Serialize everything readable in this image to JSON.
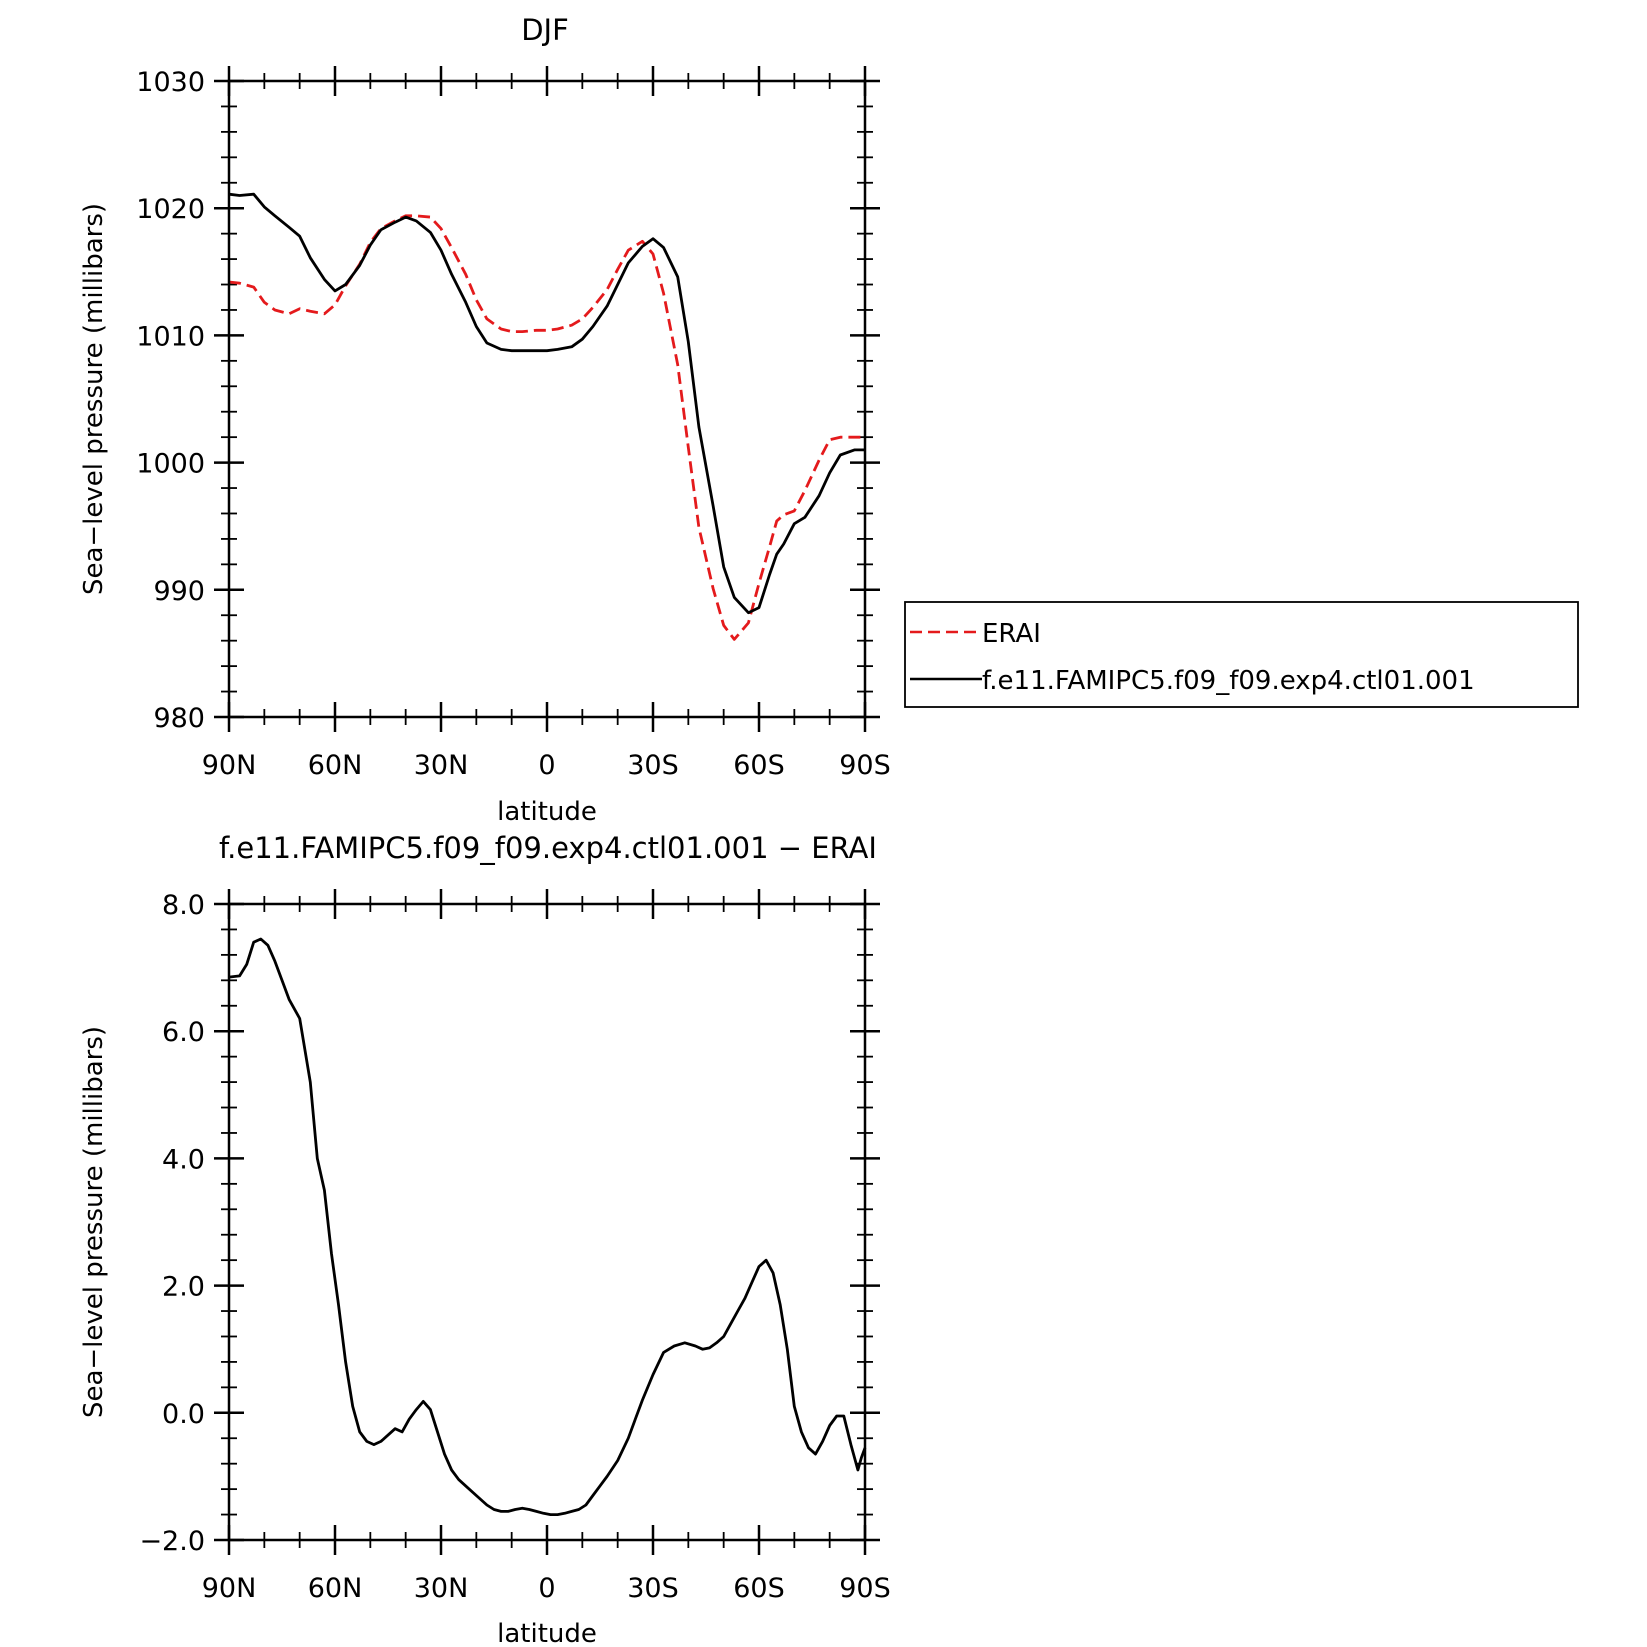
{
  "chart_data": [
    {
      "type": "line",
      "title": "DJF",
      "xlabel": "latitude",
      "ylabel": "Sea−level pressure (millibars)",
      "xlim": [
        90,
        -90
      ],
      "ylim": [
        980,
        1030
      ],
      "x_ticks": [
        90,
        60,
        30,
        0,
        -30,
        -60,
        -90
      ],
      "x_tick_labels": [
        "90N",
        "60N",
        "30N",
        "0",
        "30S",
        "60S",
        "90S"
      ],
      "y_ticks": [
        980,
        990,
        1000,
        1010,
        1020,
        1030
      ],
      "y_tick_labels": [
        "980",
        "990",
        "1000",
        "1010",
        "1020",
        "1030"
      ],
      "legend": "right",
      "series": [
        {
          "name": "ERAI",
          "color": "#e41a1c",
          "dash": "dashed",
          "x": [
            90,
            87,
            83,
            80,
            77,
            73,
            70,
            67,
            63,
            60,
            57,
            53,
            50,
            47,
            43,
            40,
            37,
            33,
            30,
            27,
            23,
            20,
            17,
            13,
            10,
            7,
            3,
            0,
            -3,
            -7,
            -10,
            -13,
            -17,
            -20,
            -23,
            -27,
            -30,
            -33,
            -37,
            -40,
            -43,
            -47,
            -50,
            -53,
            -57,
            -60,
            -63,
            -65,
            -67,
            -70,
            -73,
            -77,
            -80,
            -83,
            -87,
            -90
          ],
          "y": [
            1014.2,
            1014.1,
            1013.8,
            1012.6,
            1012.0,
            1011.7,
            1012.1,
            1011.9,
            1011.7,
            1012.4,
            1013.9,
            1015.6,
            1017.3,
            1018.4,
            1019.0,
            1019.4,
            1019.4,
            1019.3,
            1018.4,
            1016.9,
            1014.8,
            1012.8,
            1011.3,
            1010.5,
            1010.3,
            1010.3,
            1010.4,
            1010.4,
            1010.5,
            1010.8,
            1011.3,
            1012.2,
            1013.6,
            1015.2,
            1016.7,
            1017.4,
            1016.4,
            1013.3,
            1007.7,
            1001.2,
            994.9,
            990.1,
            987.2,
            986.1,
            987.4,
            990.5,
            993.4,
            995.4,
            995.9,
            996.2,
            997.8,
            1000.2,
            1001.8,
            1002.0,
            1002.0,
            1002.0
          ]
        },
        {
          "name": "f.e11.FAMIPC5.f09_f09.exp4.ctl01.001",
          "color": "#000000",
          "dash": "solid",
          "x": [
            90,
            87,
            83,
            80,
            77,
            73,
            70,
            67,
            63,
            60,
            57,
            53,
            50,
            47,
            43,
            40,
            37,
            33,
            30,
            27,
            23,
            20,
            17,
            13,
            10,
            7,
            3,
            0,
            -3,
            -7,
            -10,
            -13,
            -17,
            -20,
            -23,
            -27,
            -30,
            -33,
            -37,
            -40,
            -43,
            -47,
            -50,
            -53,
            -57,
            -60,
            -63,
            -65,
            -67,
            -70,
            -73,
            -77,
            -80,
            -83,
            -87,
            -90
          ],
          "y": [
            1021.1,
            1021.0,
            1021.1,
            1020.1,
            1019.4,
            1018.5,
            1017.8,
            1016.1,
            1014.4,
            1013.5,
            1014.0,
            1015.5,
            1017.1,
            1018.3,
            1018.9,
            1019.3,
            1019.0,
            1018.1,
            1016.7,
            1014.8,
            1012.6,
            1010.7,
            1009.4,
            1008.9,
            1008.8,
            1008.8,
            1008.8,
            1008.8,
            1008.9,
            1009.1,
            1009.7,
            1010.7,
            1012.3,
            1014.0,
            1015.7,
            1017.0,
            1017.6,
            1016.9,
            1014.6,
            1009.5,
            1002.8,
            996.6,
            991.8,
            989.4,
            988.2,
            988.6,
            991.2,
            992.8,
            993.6,
            995.2,
            995.7,
            997.4,
            999.2,
            1000.6,
            1001.0,
            1001.0
          ]
        }
      ]
    },
    {
      "type": "line",
      "title": "f.e11.FAMIPC5.f09_f09.exp4.ctl01.001  −  ERAI",
      "xlabel": "latitude",
      "ylabel": "Sea−level pressure (millibars)",
      "xlim": [
        90,
        -90
      ],
      "ylim": [
        -2.0,
        8.0
      ],
      "x_ticks": [
        90,
        60,
        30,
        0,
        -30,
        -60,
        -90
      ],
      "x_tick_labels": [
        "90N",
        "60N",
        "30N",
        "0",
        "30S",
        "60S",
        "90S"
      ],
      "y_ticks": [
        -2.0,
        0.0,
        2.0,
        4.0,
        6.0,
        8.0
      ],
      "y_tick_labels": [
        "−2.0",
        "0.0",
        "2.0",
        "4.0",
        "6.0",
        "8.0"
      ],
      "series": [
        {
          "color": "#000000",
          "dash": "solid",
          "x": [
            90,
            87,
            85,
            83,
            81,
            79,
            77,
            75,
            73,
            70,
            67,
            65,
            63,
            61,
            59,
            57,
            55,
            53,
            51,
            49,
            47,
            45,
            43,
            41,
            39,
            37,
            35,
            33,
            31,
            29,
            27,
            25,
            23,
            20,
            17,
            15,
            13,
            11,
            9,
            7,
            5,
            3,
            1,
            -1,
            -3,
            -5,
            -7,
            -9,
            -11,
            -13,
            -15,
            -17,
            -20,
            -23,
            -25,
            -27,
            -30,
            -33,
            -36,
            -39,
            -42,
            -44,
            -46,
            -48,
            -50,
            -52,
            -54,
            -56,
            -58,
            -60,
            -62,
            -64,
            -66,
            -68,
            -70,
            -72,
            -74,
            -76,
            -78,
            -80,
            -82,
            -84,
            -86,
            -88,
            -89,
            -90
          ],
          "y": [
            6.85,
            6.87,
            7.05,
            7.4,
            7.45,
            7.35,
            7.1,
            6.8,
            6.5,
            6.2,
            5.2,
            4.0,
            3.5,
            2.5,
            1.7,
            0.8,
            0.1,
            -0.3,
            -0.45,
            -0.5,
            -0.45,
            -0.35,
            -0.25,
            -0.3,
            -0.1,
            0.05,
            0.18,
            0.05,
            -0.3,
            -0.65,
            -0.9,
            -1.05,
            -1.15,
            -1.3,
            -1.45,
            -1.52,
            -1.55,
            -1.55,
            -1.52,
            -1.5,
            -1.52,
            -1.55,
            -1.58,
            -1.6,
            -1.6,
            -1.58,
            -1.55,
            -1.52,
            -1.45,
            -1.3,
            -1.15,
            -1.0,
            -0.75,
            -0.4,
            -0.1,
            0.2,
            0.6,
            0.95,
            1.05,
            1.1,
            1.05,
            1.0,
            1.02,
            1.1,
            1.2,
            1.4,
            1.6,
            1.8,
            2.05,
            2.3,
            2.4,
            2.2,
            1.7,
            1.0,
            0.1,
            -0.3,
            -0.55,
            -0.65,
            -0.45,
            -0.2,
            -0.05,
            -0.05,
            -0.5,
            -0.9,
            -0.7,
            -0.55
          ]
        }
      ]
    }
  ]
}
